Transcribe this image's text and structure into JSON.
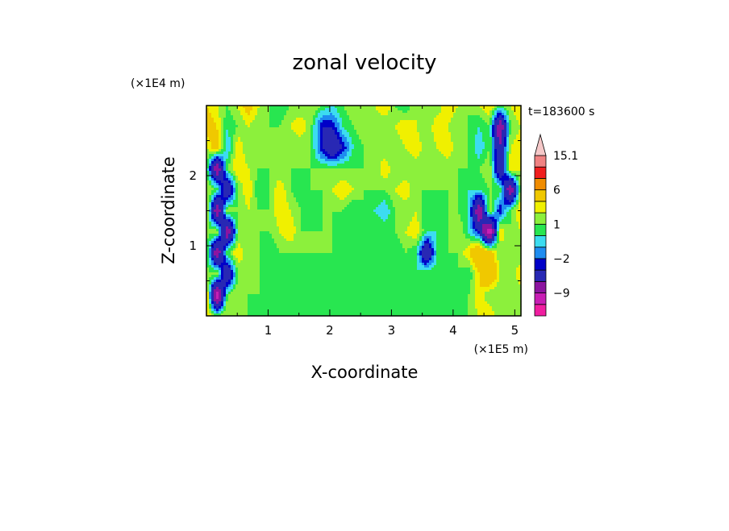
{
  "chart_data": {
    "type": "heatmap",
    "title": "zonal velocity",
    "xlabel": "X-coordinate",
    "ylabel": "Z-coordinate",
    "x_scale_label": "(×1E5 m)",
    "y_scale_label": "(×1E4 m)",
    "time_label": "t=183600 s",
    "xlim": [
      0,
      5.1
    ],
    "ylim": [
      0,
      3.0
    ],
    "x_ticks": [
      1,
      2,
      3,
      4,
      5
    ],
    "y_ticks": [
      1,
      2
    ],
    "colorbar": {
      "levels": [
        -15,
        -12,
        -9,
        -6,
        -3,
        -2,
        -1,
        0,
        1,
        2,
        3,
        6,
        9,
        12,
        15.1
      ],
      "colors": [
        "#f01ea0",
        "#c81eb4",
        "#8c14a0",
        "#2828b4",
        "#0000c8",
        "#1e8cf0",
        "#3cdcf0",
        "#28e650",
        "#8cf03c",
        "#f0f000",
        "#f0c800",
        "#f08c00",
        "#f01e1e",
        "#f08282",
        "#f5c8c8"
      ],
      "extend_top": true,
      "labels": [
        {
          "value": 15.1,
          "text": "15.1"
        },
        {
          "value": 6,
          "text": "6"
        },
        {
          "value": 1,
          "text": "1"
        },
        {
          "value": -2,
          "text": "−2"
        },
        {
          "value": -9,
          "text": "−9"
        }
      ]
    },
    "field": [
      [
        3,
        2,
        1,
        2,
        4,
        2,
        1,
        0,
        1,
        1,
        2,
        1,
        0,
        1,
        2,
        1,
        2,
        3,
        1,
        0,
        2,
        1,
        1,
        3,
        2,
        1,
        2,
        3,
        1,
        2,
        3
      ],
      [
        4,
        3,
        0,
        1,
        2,
        1,
        1,
        1,
        2,
        3,
        1,
        -3,
        -3,
        0,
        1,
        2,
        1,
        1,
        2,
        3,
        2,
        1,
        3,
        2,
        1,
        1,
        0,
        1,
        -9,
        1,
        2
      ],
      [
        2,
        4,
        -1,
        3,
        1,
        1,
        1,
        1,
        1,
        1,
        1,
        -3,
        -6,
        -3,
        0,
        1,
        1,
        1,
        1,
        2,
        3,
        1,
        2,
        3,
        1,
        1,
        -1,
        1,
        -6,
        2,
        3
      ],
      [
        1,
        -9,
        1,
        3,
        2,
        1,
        1,
        1,
        1,
        1,
        1,
        1,
        1,
        1,
        1,
        1,
        1,
        3,
        1,
        1,
        1,
        1,
        1,
        1,
        1,
        1,
        1,
        2,
        -6,
        3,
        2
      ],
      [
        2,
        1,
        -6,
        1,
        3,
        0,
        1,
        3,
        1,
        0,
        1,
        1,
        2,
        3,
        2,
        1,
        1,
        1,
        2,
        3,
        1,
        1,
        1,
        1,
        1,
        0,
        0,
        1,
        1,
        -9,
        2
      ],
      [
        3,
        -9,
        2,
        1,
        2,
        1,
        1,
        3,
        2,
        1,
        0,
        1,
        1,
        1,
        0,
        1,
        0,
        -1,
        1,
        1,
        2,
        0,
        0,
        1,
        1,
        0,
        -9,
        2,
        -3,
        1,
        3
      ],
      [
        1,
        2,
        -9,
        1,
        1,
        1,
        1,
        2,
        3,
        1,
        1,
        1,
        1,
        0,
        0,
        1,
        1,
        1,
        1,
        2,
        3,
        0,
        0,
        1,
        2,
        0,
        -3,
        -12,
        3,
        1,
        2
      ],
      [
        2,
        -9,
        1,
        3,
        1,
        1,
        0,
        1,
        1,
        1,
        1,
        1,
        1,
        1,
        0,
        0,
        0,
        0,
        0,
        1,
        0,
        -6,
        0,
        1,
        1,
        3,
        6,
        4,
        1,
        2,
        1
      ],
      [
        1,
        2,
        -6,
        1,
        2,
        1,
        1,
        1,
        0,
        1,
        0,
        1,
        0,
        1,
        0,
        0,
        0,
        0,
        1,
        0,
        0,
        1,
        1,
        0,
        1,
        0,
        3,
        6,
        2,
        1,
        3
      ],
      [
        4,
        -12,
        1,
        2,
        1,
        1,
        0,
        1,
        1,
        0,
        1,
        0,
        1,
        0,
        1,
        0,
        1,
        0,
        0,
        1,
        0,
        1,
        0,
        1,
        1,
        1,
        3,
        1,
        1,
        2,
        1
      ],
      [
        3,
        1,
        2,
        1,
        1,
        0,
        1,
        1,
        0,
        1,
        1,
        0,
        1,
        0,
        0,
        1,
        0,
        0,
        1,
        0,
        1,
        0,
        1,
        1,
        0,
        1,
        2,
        3,
        1,
        2,
        2
      ]
    ]
  }
}
